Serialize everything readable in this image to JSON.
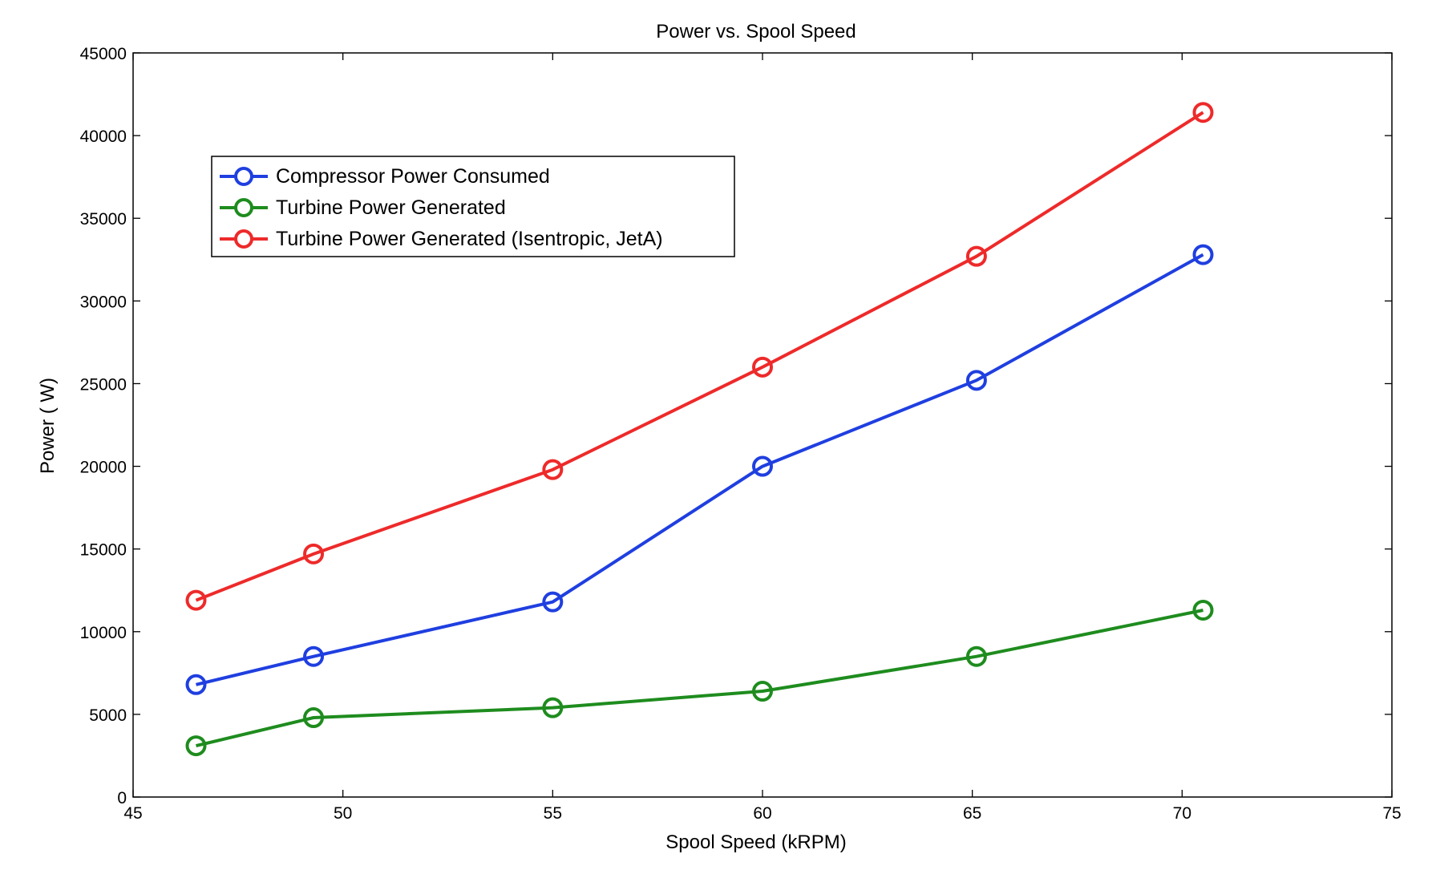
{
  "chart_data": {
    "type": "line",
    "title": "Power vs. Spool Speed",
    "xlabel": "Spool Speed (kRPM)",
    "ylabel": "Power ( W)",
    "xlim": [
      45,
      75
    ],
    "ylim": [
      0,
      45000
    ],
    "x_ticks": [
      45,
      50,
      55,
      60,
      65,
      70,
      75
    ],
    "y_ticks": [
      0,
      5000,
      10000,
      15000,
      20000,
      25000,
      30000,
      35000,
      40000,
      45000
    ],
    "grid": false,
    "legend_position": "upper-left",
    "marker": "circle-open",
    "x": [
      46.5,
      49.3,
      55,
      60,
      65.1,
      70.5
    ],
    "series": [
      {
        "name": "Compressor Power Consumed",
        "color": "#1f3fe0",
        "values": [
          6800,
          8500,
          11800,
          20000,
          25200,
          32800
        ]
      },
      {
        "name": "Turbine Power Generated",
        "color": "#1e8c1e",
        "values": [
          3100,
          4800,
          5400,
          6400,
          8500,
          11300
        ]
      },
      {
        "name": "Turbine Power Generated (Isentropic, JetA)",
        "color": "#ee2a2a",
        "values": [
          11900,
          14700,
          19800,
          26000,
          32700,
          41400
        ]
      }
    ]
  }
}
